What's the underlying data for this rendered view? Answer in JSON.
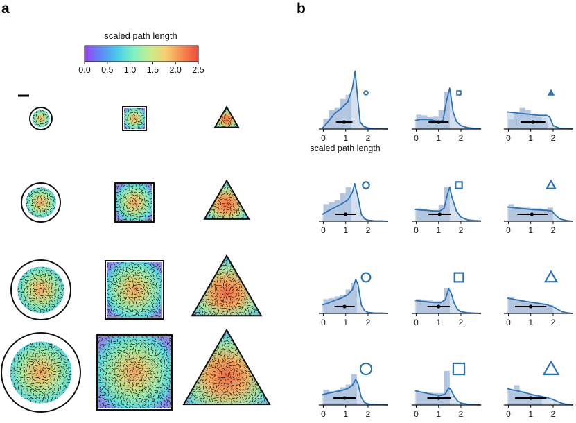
{
  "panel_labels": {
    "a": "a",
    "b": "b"
  },
  "colorbar": {
    "title": "scaled path length",
    "ticks": [
      "0.0",
      "0.5",
      "1.0",
      "1.5",
      "2.0",
      "2.5"
    ],
    "range": [
      0,
      2.5
    ],
    "stops": [
      "#9b42f5",
      "#5a8bf2",
      "#49c9ea",
      "#7ef0c2",
      "#c3ee8e",
      "#f6cf70",
      "#f48a4e",
      "#ef4a37"
    ]
  },
  "colors": {
    "line": "#2a72b5",
    "fill": "#b3c6e0",
    "marker": "#000000",
    "outline": "#111111"
  },
  "chart_data": {
    "type": "histogram-grid",
    "xlabel": "scaled path length",
    "x_ticks": [
      0,
      1,
      2
    ],
    "x_range": [
      -0.2,
      2.9
    ],
    "shapes": [
      "circle",
      "square",
      "triangle"
    ],
    "sizes": [
      1,
      2,
      3,
      4
    ],
    "panels": [
      {
        "shape": "circle",
        "size": 1,
        "hist_x": [
          0.25,
          0.5,
          0.75,
          1.0,
          1.25
        ],
        "hist_y": [
          0.3,
          0.55,
          0.62,
          0.88,
          1.0
        ],
        "kde_x": [
          -0.05,
          0.2,
          0.5,
          0.8,
          1.1,
          1.3,
          1.42,
          1.55,
          1.65,
          1.8,
          2.0,
          2.3,
          2.6,
          2.9
        ],
        "kde_y": [
          0.02,
          0.2,
          0.45,
          0.6,
          0.8,
          1.2,
          1.7,
          0.8,
          0.2,
          0.08,
          0.03,
          0.01,
          0.01,
          0.0
        ],
        "mean": 0.93,
        "err": [
          0.57,
          1.3
        ]
      },
      {
        "shape": "square",
        "size": 1,
        "hist_x": [
          0.25,
          0.5,
          0.75,
          1.0,
          1.25,
          1.5
        ],
        "hist_y": [
          0.42,
          0.4,
          0.35,
          0.36,
          0.55,
          1.1
        ],
        "kde_x": [
          -0.05,
          0.2,
          0.5,
          0.8,
          1.05,
          1.2,
          1.35,
          1.5,
          1.65,
          1.8,
          2.0,
          2.3,
          2.6,
          2.9
        ],
        "kde_y": [
          0.25,
          0.28,
          0.28,
          0.25,
          0.22,
          0.26,
          0.8,
          1.2,
          0.5,
          0.22,
          0.1,
          0.04,
          0.02,
          0.01
        ],
        "mean": 1.0,
        "err": [
          0.55,
          1.45
        ]
      },
      {
        "shape": "triangle",
        "size": 1,
        "hist_x": [
          0.25,
          0.5,
          0.75,
          1.0,
          1.25,
          1.5,
          1.75
        ],
        "hist_y": [
          0.28,
          0.45,
          0.62,
          0.55,
          0.45,
          0.35,
          0.22
        ],
        "kde_x": [
          -0.05,
          0.2,
          0.5,
          0.8,
          1.1,
          1.4,
          1.7,
          1.85,
          2.0,
          2.3,
          2.6,
          2.9
        ],
        "kde_y": [
          0.5,
          0.48,
          0.46,
          0.44,
          0.42,
          0.4,
          0.4,
          0.35,
          0.1,
          0.02,
          0.01,
          0.0
        ],
        "mean": 1.1,
        "err": [
          0.55,
          1.65
        ]
      },
      {
        "shape": "circle",
        "size": 2,
        "hist_x": [
          0.25,
          0.5,
          0.75,
          1.0,
          1.25
        ],
        "hist_y": [
          0.5,
          0.55,
          0.62,
          0.82,
          1.0
        ],
        "kde_x": [
          -0.05,
          0.2,
          0.5,
          0.8,
          1.1,
          1.3,
          1.4,
          1.55,
          1.7,
          1.85,
          2.0,
          2.3,
          2.6,
          2.9
        ],
        "kde_y": [
          0.2,
          0.3,
          0.4,
          0.5,
          0.62,
          0.85,
          1.1,
          0.7,
          0.2,
          0.07,
          0.03,
          0.01,
          0.01,
          0.0
        ],
        "mean": 1.0,
        "err": [
          0.55,
          1.45
        ]
      },
      {
        "shape": "square",
        "size": 2,
        "hist_x": [
          0.25,
          0.5,
          0.75,
          1.0,
          1.25,
          1.5
        ],
        "hist_y": [
          0.38,
          0.35,
          0.33,
          0.33,
          0.48,
          1.0
        ],
        "kde_x": [
          -0.05,
          0.2,
          0.5,
          0.8,
          1.05,
          1.25,
          1.4,
          1.5,
          1.6,
          1.8,
          2.0,
          2.3,
          2.6,
          2.9
        ],
        "kde_y": [
          0.35,
          0.33,
          0.32,
          0.3,
          0.3,
          0.38,
          0.8,
          1.0,
          0.7,
          0.3,
          0.12,
          0.04,
          0.02,
          0.01
        ],
        "mean": 1.05,
        "err": [
          0.55,
          1.55
        ]
      },
      {
        "shape": "triangle",
        "size": 2,
        "hist_x": [
          0.25,
          0.5,
          0.75,
          1.0,
          1.25,
          1.5,
          1.75,
          2.0
        ],
        "hist_y": [
          0.5,
          0.42,
          0.4,
          0.4,
          0.38,
          0.38,
          0.36,
          0.4
        ],
        "kde_x": [
          -0.05,
          0.2,
          0.5,
          0.8,
          1.1,
          1.4,
          1.7,
          1.95,
          2.1,
          2.3,
          2.6,
          2.9
        ],
        "kde_y": [
          0.42,
          0.4,
          0.38,
          0.36,
          0.34,
          0.33,
          0.32,
          0.3,
          0.18,
          0.07,
          0.02,
          0.0
        ],
        "mean": 1.05,
        "err": [
          0.4,
          1.75
        ]
      },
      {
        "shape": "circle",
        "size": 3,
        "hist_x": [
          0.25,
          0.5,
          0.75,
          1.0,
          1.25,
          1.5
        ],
        "hist_y": [
          0.42,
          0.45,
          0.5,
          0.55,
          0.7,
          0.9
        ],
        "kde_x": [
          -0.05,
          0.2,
          0.5,
          0.8,
          1.1,
          1.3,
          1.45,
          1.55,
          1.7,
          1.85,
          2.0,
          2.3,
          2.6,
          2.9
        ],
        "kde_y": [
          0.25,
          0.3,
          0.38,
          0.45,
          0.55,
          0.7,
          1.0,
          0.85,
          0.25,
          0.08,
          0.03,
          0.01,
          0.01,
          0.0
        ],
        "mean": 0.95,
        "err": [
          0.5,
          1.4
        ]
      },
      {
        "shape": "square",
        "size": 3,
        "hist_x": [
          0.25,
          0.5,
          0.75,
          1.0,
          1.25,
          1.5
        ],
        "hist_y": [
          0.42,
          0.4,
          0.38,
          0.36,
          0.36,
          0.75
        ],
        "kde_x": [
          -0.05,
          0.2,
          0.5,
          0.8,
          1.1,
          1.3,
          1.45,
          1.55,
          1.7,
          1.85,
          2.0,
          2.3,
          2.6,
          2.9
        ],
        "kde_y": [
          0.38,
          0.36,
          0.34,
          0.32,
          0.32,
          0.4,
          0.72,
          0.62,
          0.3,
          0.12,
          0.05,
          0.02,
          0.01,
          0.0
        ],
        "mean": 1.0,
        "err": [
          0.5,
          1.5
        ]
      },
      {
        "shape": "triangle",
        "size": 3,
        "hist_x": [
          0.25,
          0.5,
          0.75,
          1.0,
          1.25,
          1.5,
          1.75,
          2.0
        ],
        "hist_y": [
          0.48,
          0.42,
          0.38,
          0.35,
          0.33,
          0.3,
          0.28,
          0.25
        ],
        "kde_x": [
          -0.05,
          0.2,
          0.5,
          0.8,
          1.1,
          1.4,
          1.7,
          2.0,
          2.2,
          2.4,
          2.6,
          2.9
        ],
        "kde_y": [
          0.45,
          0.42,
          0.38,
          0.35,
          0.32,
          0.29,
          0.26,
          0.2,
          0.12,
          0.05,
          0.02,
          0.0
        ],
        "mean": 1.0,
        "err": [
          0.3,
          1.7
        ]
      },
      {
        "shape": "circle",
        "size": 4,
        "hist_x": [
          0.25,
          0.5,
          0.75,
          1.0,
          1.25,
          1.5
        ],
        "hist_y": [
          0.45,
          0.4,
          0.45,
          0.52,
          0.6,
          0.9
        ],
        "kde_x": [
          -0.05,
          0.2,
          0.5,
          0.8,
          1.1,
          1.3,
          1.45,
          1.55,
          1.7,
          1.85,
          2.0,
          2.3,
          2.6,
          2.9
        ],
        "kde_y": [
          0.3,
          0.34,
          0.38,
          0.42,
          0.48,
          0.58,
          0.75,
          0.62,
          0.22,
          0.07,
          0.03,
          0.01,
          0.01,
          0.0
        ],
        "mean": 0.95,
        "err": [
          0.45,
          1.45
        ]
      },
      {
        "shape": "square",
        "size": 4,
        "hist_x": [
          0.25,
          0.5,
          0.75,
          1.0,
          1.25,
          1.5
        ],
        "hist_y": [
          0.4,
          0.38,
          0.36,
          0.35,
          0.35,
          1.0
        ],
        "kde_x": [
          -0.05,
          0.2,
          0.5,
          0.8,
          1.1,
          1.3,
          1.45,
          1.55,
          1.7,
          1.85,
          2.0,
          2.3,
          2.6,
          2.9
        ],
        "kde_y": [
          0.42,
          0.38,
          0.34,
          0.3,
          0.28,
          0.32,
          0.5,
          0.45,
          0.25,
          0.12,
          0.06,
          0.02,
          0.01,
          0.0
        ],
        "mean": 1.0,
        "err": [
          0.5,
          1.55
        ]
      },
      {
        "shape": "triangle",
        "size": 4,
        "hist_x": [
          0.25,
          0.5,
          0.75,
          1.0,
          1.25,
          1.5
        ],
        "hist_y": [
          0.45,
          0.58,
          0.4,
          0.32,
          0.3,
          0.28
        ],
        "kde_x": [
          -0.05,
          0.2,
          0.5,
          0.8,
          1.1,
          1.4,
          1.7,
          2.0,
          2.2,
          2.4,
          2.6,
          2.9
        ],
        "kde_y": [
          0.48,
          0.44,
          0.4,
          0.35,
          0.3,
          0.26,
          0.22,
          0.16,
          0.1,
          0.05,
          0.02,
          0.0
        ],
        "mean": 1.0,
        "err": [
          0.3,
          1.7
        ]
      }
    ]
  }
}
